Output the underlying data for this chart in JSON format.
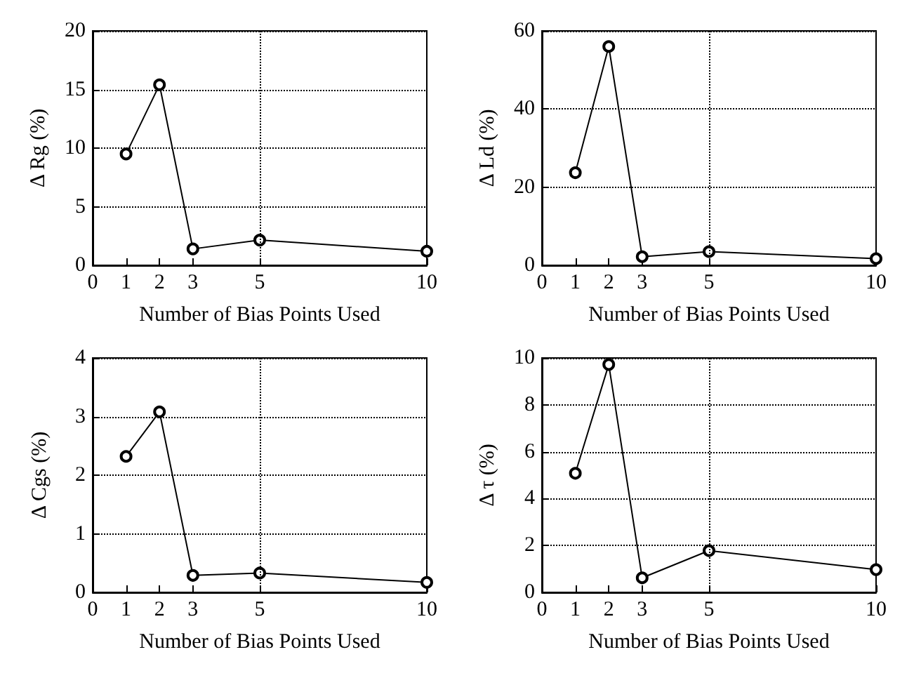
{
  "chart_data": [
    {
      "type": "line",
      "ylabel": "Δ Rg (%)",
      "xlabel": "Number of Bias Points Used",
      "x": [
        1,
        2,
        3,
        5,
        10
      ],
      "series": [
        {
          "color": "#000000",
          "values": [
            9.5,
            15.4,
            1.4,
            2.15,
            1.2
          ]
        }
      ],
      "xlim": [
        0,
        10
      ],
      "xticks": [
        0,
        1,
        2,
        3,
        5,
        10
      ],
      "ylim": [
        0,
        20
      ],
      "yticks": [
        0,
        5,
        10,
        15,
        20
      ],
      "grid": "y",
      "marker": "circle",
      "line_style": "solid",
      "ref_lines": [
        {
          "axis": "x",
          "value": 5,
          "line_style": "dotted",
          "color": "#000000"
        }
      ]
    },
    {
      "type": "line",
      "ylabel": "Δ Ld (%)",
      "xlabel": "Number of Bias Points Used",
      "x": [
        1,
        2,
        3,
        5,
        10
      ],
      "series": [
        {
          "color": "#000000",
          "values": [
            23.7,
            56,
            2.2,
            3.5,
            1.7
          ]
        }
      ],
      "xlim": [
        0,
        10
      ],
      "xticks": [
        0,
        1,
        2,
        3,
        5,
        10
      ],
      "ylim": [
        0,
        60
      ],
      "yticks": [
        0,
        20,
        40,
        60
      ],
      "grid": "y",
      "marker": "circle",
      "line_style": "solid",
      "ref_lines": [
        {
          "axis": "x",
          "value": 5,
          "line_style": "dotted",
          "color": "#000000"
        }
      ]
    },
    {
      "type": "line",
      "ylabel": "Δ Cgs (%)",
      "xlabel": "Number of Bias Points Used",
      "x": [
        1,
        2,
        3,
        5,
        10
      ],
      "series": [
        {
          "color": "#000000",
          "values": [
            2.32,
            3.08,
            0.29,
            0.33,
            0.17
          ]
        }
      ],
      "xlim": [
        0,
        10
      ],
      "xticks": [
        0,
        1,
        2,
        3,
        5,
        10
      ],
      "ylim": [
        0,
        4
      ],
      "yticks": [
        0,
        1,
        2,
        3,
        4
      ],
      "grid": "y",
      "marker": "circle",
      "line_style": "solid",
      "ref_lines": [
        {
          "axis": "x",
          "value": 5,
          "line_style": "dotted",
          "color": "#000000"
        }
      ]
    },
    {
      "type": "line",
      "ylabel": "Δ τ (%)",
      "xlabel": "Number of Bias Points Used",
      "x": [
        1,
        2,
        3,
        5,
        10
      ],
      "series": [
        {
          "color": "#000000",
          "values": [
            5.08,
            9.72,
            0.62,
            1.78,
            0.97
          ]
        }
      ],
      "xlim": [
        0,
        10
      ],
      "xticks": [
        0,
        1,
        2,
        3,
        5,
        10
      ],
      "ylim": [
        0,
        10
      ],
      "yticks": [
        0,
        2,
        4,
        6,
        8,
        10
      ],
      "grid": "y",
      "marker": "circle",
      "line_style": "solid",
      "ref_lines": [
        {
          "axis": "x",
          "value": 5,
          "line_style": "dotted",
          "color": "#000000"
        }
      ]
    }
  ]
}
